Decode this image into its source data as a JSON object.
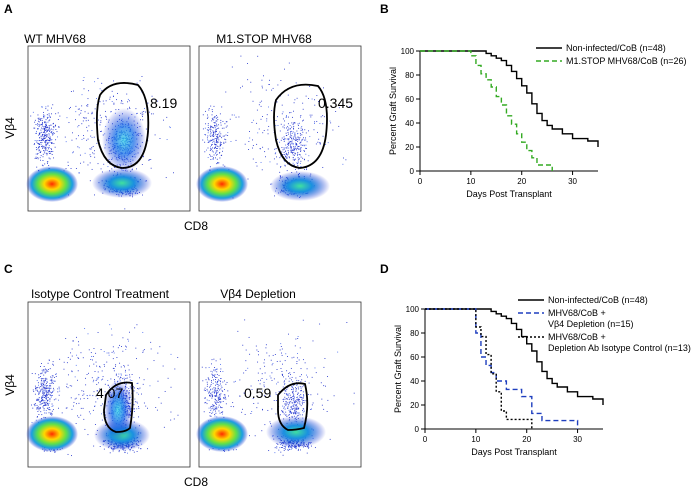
{
  "panel_letters": {
    "a": "A",
    "b": "B",
    "c": "C",
    "d": "D"
  },
  "flow_top": {
    "left_title": "WT MHV68",
    "right_title": "M1.STOP MHV68",
    "left_gate_value": "8.19",
    "right_gate_value": "0.345",
    "y_label": "Vβ4",
    "x_label": "CD8"
  },
  "flow_bottom": {
    "left_title": "Isotype Control Treatment",
    "right_title": "Vβ4 Depletion",
    "left_gate_value": "4.07",
    "right_gate_value": "0.59",
    "y_label": "Vβ4",
    "x_label": "CD8"
  },
  "chart_data": [
    {
      "type": "line",
      "panel": "B",
      "title": "",
      "xlabel": "Days Post Transplant",
      "ylabel": "Percent Graft Survival",
      "xlim": [
        0,
        35
      ],
      "ylim": [
        0,
        100
      ],
      "xticks": [
        "0",
        "10",
        "20",
        "30"
      ],
      "yticks": [
        "0",
        "20",
        "40",
        "60",
        "80",
        "100"
      ],
      "legend_position": "top-right",
      "series": [
        {
          "name": "Non-infected/CoB (n=48)",
          "color": "#000000",
          "dash": "solid",
          "x": [
            0,
            13,
            14,
            15,
            16,
            17,
            18,
            19,
            20,
            21,
            22,
            23,
            24,
            25,
            26,
            28,
            30,
            33,
            35
          ],
          "y": [
            100,
            98,
            96,
            94,
            92,
            88,
            83,
            77,
            71,
            65,
            56,
            48,
            42,
            38,
            35,
            31,
            27,
            25,
            20
          ]
        },
        {
          "name": "M1.STOP MHV68/CoB (n=26)",
          "color": "#33aa22",
          "dash": "dashed",
          "x": [
            0,
            10,
            11,
            12,
            13,
            14,
            15,
            16,
            17,
            18,
            19,
            20,
            21,
            22,
            23,
            26
          ],
          "y": [
            100,
            96,
            88,
            81,
            76,
            70,
            62,
            55,
            46,
            39,
            31,
            24,
            17,
            11,
            5,
            0
          ]
        }
      ]
    },
    {
      "type": "line",
      "panel": "D",
      "title": "",
      "xlabel": "Days Post Transplant",
      "ylabel": "Percent Graft Survival",
      "xlim": [
        0,
        35
      ],
      "ylim": [
        0,
        100
      ],
      "xticks": [
        "0",
        "10",
        "20",
        "30"
      ],
      "yticks": [
        "0",
        "20",
        "40",
        "60",
        "80",
        "100"
      ],
      "legend_position": "top-right",
      "series": [
        {
          "name": "Non-infected/CoB (n=48)",
          "color": "#000000",
          "dash": "solid",
          "legend_lines": [
            "Non-infected/CoB (n=48)"
          ],
          "x": [
            0,
            13,
            14,
            15,
            16,
            17,
            18,
            19,
            20,
            21,
            22,
            23,
            24,
            25,
            26,
            28,
            30,
            33,
            35
          ],
          "y": [
            100,
            98,
            96,
            94,
            92,
            88,
            83,
            77,
            71,
            65,
            56,
            48,
            42,
            38,
            35,
            31,
            27,
            25,
            20
          ]
        },
        {
          "name": "MHV68/CoB + Vβ4 Depletion (n=15)",
          "color": "#1f3fbf",
          "dash": "dashed",
          "legend_lines": [
            "MHV68/CoB +",
            "Vβ4 Depletion (n=15)"
          ],
          "x": [
            0,
            10,
            11,
            12,
            13,
            14,
            16,
            19,
            21,
            23,
            30
          ],
          "y": [
            100,
            80,
            60,
            53,
            47,
            40,
            33,
            27,
            13,
            7,
            0
          ]
        },
        {
          "name": "MHV68/CoB + Depletion Ab Isotype Control (n=13)",
          "color": "#000000",
          "dash": "dotted",
          "legend_lines": [
            "MHV68/CoB +",
            "Depletion Ab Isotype Control (n=13)"
          ],
          "x": [
            0,
            10,
            11,
            12,
            13,
            14,
            15,
            16,
            18,
            21
          ],
          "y": [
            100,
            85,
            77,
            62,
            46,
            31,
            15,
            8,
            8,
            0
          ]
        }
      ]
    }
  ]
}
